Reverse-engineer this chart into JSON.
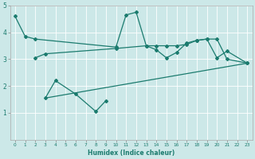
{
  "xlabel": "Humidex (Indice chaleur)",
  "color": "#1b7b6e",
  "bg_color": "#cce8e8",
  "grid_color": "#ffffff",
  "ylim": [
    0,
    5
  ],
  "xlim": [
    -0.5,
    23.5
  ],
  "yticks": [
    1,
    2,
    3,
    4,
    5
  ],
  "xticks": [
    0,
    1,
    2,
    3,
    4,
    5,
    6,
    7,
    8,
    9,
    10,
    11,
    12,
    13,
    14,
    15,
    16,
    17,
    18,
    19,
    20,
    21,
    22,
    23
  ],
  "line1_x": [
    0,
    1,
    2,
    10,
    11,
    12,
    13,
    14,
    15,
    16,
    17,
    18,
    19,
    20,
    21,
    23
  ],
  "line1_y": [
    4.6,
    3.85,
    3.75,
    3.45,
    4.65,
    4.75,
    3.5,
    3.35,
    3.05,
    3.25,
    3.6,
    3.7,
    3.75,
    3.05,
    3.3,
    2.85
  ],
  "line2_x": [
    2,
    3,
    10,
    13,
    14,
    15,
    16,
    17,
    18,
    19,
    20,
    21,
    23
  ],
  "line2_y": [
    3.05,
    3.2,
    3.4,
    3.5,
    3.5,
    3.5,
    3.5,
    3.55,
    3.7,
    3.75,
    3.75,
    3.0,
    2.85
  ],
  "line3_x": [
    3,
    4,
    6,
    8,
    9
  ],
  "line3_y": [
    1.55,
    2.2,
    1.7,
    1.05,
    1.45
  ],
  "line4_x": [
    3,
    23
  ],
  "line4_y": [
    1.55,
    2.85
  ]
}
